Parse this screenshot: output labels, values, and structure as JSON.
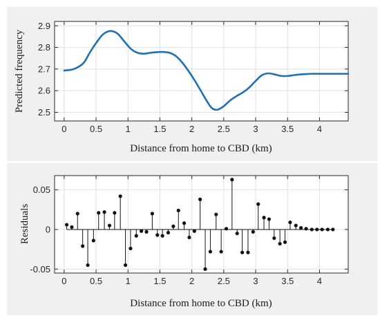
{
  "chart_data": [
    {
      "type": "line",
      "xlabel": "Distance from home to CBD (km)",
      "ylabel": "Predicted frequency",
      "xlim": [
        -0.15,
        4.45
      ],
      "ylim": [
        2.46,
        2.92
      ],
      "xticks": [
        0,
        0.5,
        1,
        1.5,
        2,
        2.5,
        3,
        3.5,
        4
      ],
      "xtick_labels": [
        "0",
        "0.5",
        "1",
        "1.5",
        "2",
        "2.5",
        "3",
        "3.5",
        "4"
      ],
      "yticks": [
        2.5,
        2.6,
        2.7,
        2.8,
        2.9
      ],
      "ytick_labels": [
        "2.5",
        "2.6",
        "2.7",
        "2.8",
        "2.9"
      ],
      "grid": true,
      "color": "#1f6fb5",
      "series": [
        {
          "x": [
            0,
            0.15,
            0.3,
            0.4,
            0.5,
            0.6,
            0.7,
            0.78,
            0.85,
            0.95,
            1.05,
            1.15,
            1.25,
            1.35,
            1.45,
            1.55,
            1.65,
            1.75,
            1.85,
            1.95,
            2.05,
            2.15,
            2.25,
            2.32,
            2.4,
            2.5,
            2.6,
            2.7,
            2.8,
            2.9,
            3.0,
            3.1,
            3.2,
            3.3,
            3.4,
            3.5,
            3.6,
            3.7,
            3.8,
            3.9,
            4.0,
            4.2,
            4.45
          ],
          "y": [
            2.693,
            2.7,
            2.727,
            2.775,
            2.82,
            2.858,
            2.875,
            2.873,
            2.86,
            2.825,
            2.792,
            2.775,
            2.771,
            2.775,
            2.778,
            2.779,
            2.775,
            2.76,
            2.73,
            2.69,
            2.645,
            2.595,
            2.545,
            2.518,
            2.512,
            2.528,
            2.555,
            2.575,
            2.592,
            2.615,
            2.645,
            2.672,
            2.68,
            2.675,
            2.668,
            2.668,
            2.672,
            2.675,
            2.677,
            2.678,
            2.678,
            2.678,
            2.678
          ]
        }
      ]
    },
    {
      "type": "stem",
      "xlabel": "Distance from home to CBD (km)",
      "ylabel": "Residuals",
      "xlim": [
        -0.15,
        4.45
      ],
      "ylim": [
        -0.055,
        0.068
      ],
      "xticks": [
        0,
        0.5,
        1,
        1.5,
        2,
        2.5,
        3,
        3.5,
        4
      ],
      "xtick_labels": [
        "0",
        "0.5",
        "1",
        "1.5",
        "2",
        "2.5",
        "3",
        "3.5",
        "4"
      ],
      "yticks": [
        -0.05,
        0,
        0.05
      ],
      "ytick_labels": [
        "-0.05",
        "0",
        "0.05"
      ],
      "grid": true,
      "x": [
        0.04,
        0.12,
        0.21,
        0.29,
        0.37,
        0.46,
        0.54,
        0.63,
        0.71,
        0.79,
        0.88,
        0.96,
        1.04,
        1.13,
        1.21,
        1.29,
        1.38,
        1.46,
        1.54,
        1.63,
        1.71,
        1.79,
        1.88,
        1.96,
        2.04,
        2.13,
        2.21,
        2.29,
        2.38,
        2.46,
        2.54,
        2.63,
        2.71,
        2.79,
        2.88,
        2.96,
        3.04,
        3.13,
        3.21,
        3.29,
        3.38,
        3.46,
        3.54,
        3.63,
        3.71,
        3.79,
        3.88,
        3.96,
        4.04,
        4.13,
        4.21
      ],
      "values": [
        0.006,
        0.003,
        0.02,
        -0.021,
        -0.045,
        -0.014,
        0.021,
        0.022,
        0.005,
        0.021,
        0.042,
        -0.045,
        -0.024,
        -0.008,
        -0.002,
        -0.003,
        0.02,
        -0.007,
        -0.008,
        -0.004,
        0.004,
        0.024,
        0.008,
        -0.01,
        -0.002,
        0.038,
        -0.05,
        -0.028,
        0.019,
        -0.028,
        0.001,
        0.063,
        -0.005,
        -0.029,
        -0.029,
        -0.003,
        0.032,
        0.015,
        0.013,
        -0.011,
        -0.018,
        -0.016,
        0.009,
        0.005,
        0.002,
        0.001,
        0.0,
        0.0,
        0.0,
        0.0,
        0.0
      ]
    }
  ]
}
